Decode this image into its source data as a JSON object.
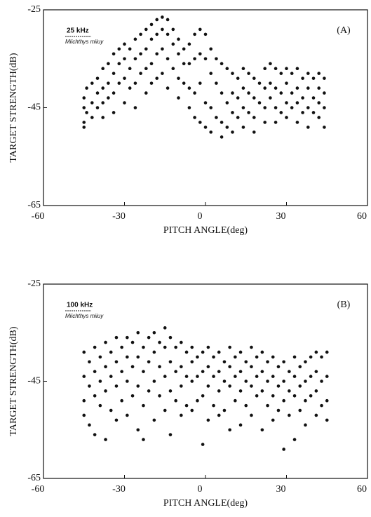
{
  "chart_data": [
    {
      "type": "scatter",
      "panel_label": "(A)",
      "frequency_label": "25 kHz",
      "species": "Miichthys miiuy",
      "xlabel": "PITCH ANGLE(deg)",
      "ylabel": "TARGET STRENGTH(dB)",
      "xlim": [
        -60,
        60
      ],
      "ylim": [
        -65,
        -25
      ],
      "xticks": [
        -60,
        -30,
        0,
        30,
        60
      ],
      "yticks": [
        -65,
        -45,
        -25
      ],
      "series": [
        {
          "color": "#111111",
          "x": [
            -45,
            -45,
            -45,
            -45,
            -44,
            -44,
            -42,
            -42,
            -42,
            -40,
            -40,
            -40,
            -38,
            -38,
            -38,
            -38,
            -36,
            -36,
            -36,
            -34,
            -34,
            -34,
            -34,
            -32,
            -32,
            -32,
            -30,
            -30,
            -30,
            -30,
            -28,
            -28,
            -28,
            -26,
            -26,
            -26,
            -26,
            -24,
            -24,
            -24,
            -22,
            -22,
            -22,
            -22,
            -20,
            -20,
            -20,
            -20,
            -18,
            -18,
            -18,
            -18,
            -16,
            -16,
            -16,
            -16,
            -14,
            -14,
            -14,
            -14,
            -12,
            -12,
            -12,
            -10,
            -10,
            -10,
            -10,
            -8,
            -8,
            -8,
            -6,
            -6,
            -6,
            -6,
            -4,
            -4,
            -4,
            -4,
            -2,
            -2,
            -2,
            -2,
            0,
            0,
            0,
            0,
            2,
            2,
            2,
            2,
            4,
            4,
            4,
            6,
            6,
            6,
            6,
            8,
            8,
            8,
            10,
            10,
            10,
            10,
            12,
            12,
            12,
            14,
            14,
            14,
            14,
            16,
            16,
            16,
            18,
            18,
            18,
            18,
            20,
            20,
            22,
            22,
            22,
            22,
            24,
            24,
            24,
            26,
            26,
            26,
            26,
            28,
            28,
            28,
            30,
            30,
            30,
            30,
            32,
            32,
            32,
            34,
            34,
            34,
            34,
            36,
            36,
            36,
            38,
            38,
            38,
            38,
            40,
            40,
            40,
            42,
            42,
            42,
            42,
            44,
            44,
            44,
            44
          ],
          "values": [
            -43,
            -45,
            -48,
            -49,
            -41,
            -46,
            -40,
            -44,
            -47,
            -39,
            -42,
            -45,
            -37,
            -41,
            -44,
            -47,
            -36,
            -40,
            -43,
            -34,
            -38,
            -42,
            -46,
            -33,
            -36,
            -40,
            -32,
            -35,
            -39,
            -44,
            -33,
            -37,
            -41,
            -31,
            -35,
            -40,
            -45,
            -30,
            -34,
            -38,
            -29,
            -33,
            -37,
            -42,
            -28,
            -31,
            -36,
            -40,
            -27,
            -30,
            -34,
            -39,
            -26.5,
            -29,
            -33,
            -38,
            -27,
            -30,
            -35,
            -41,
            -29,
            -32,
            -37,
            -31,
            -34,
            -39,
            -43,
            -33,
            -36,
            -40,
            -32,
            -36,
            -41,
            -45,
            -30,
            -35,
            -42,
            -47,
            -29,
            -34,
            -40,
            -48,
            -30,
            -35,
            -44,
            -49,
            -33,
            -38,
            -45,
            -50,
            -35,
            -40,
            -47,
            -36,
            -42,
            -48,
            -51,
            -37,
            -44,
            -49,
            -38,
            -42,
            -46,
            -50,
            -39,
            -43,
            -47,
            -37,
            -41,
            -45,
            -49,
            -38,
            -42,
            -46,
            -39,
            -43,
            -47,
            -50,
            -40,
            -44,
            -37,
            -41,
            -45,
            -48,
            -36,
            -40,
            -43,
            -37,
            -41,
            -45,
            -48,
            -38,
            -42,
            -46,
            -37,
            -40,
            -44,
            -47,
            -38,
            -42,
            -45,
            -37,
            -41,
            -44,
            -48,
            -39,
            -43,
            -46,
            -38,
            -41,
            -45,
            -49,
            -39,
            -43,
            -46,
            -38,
            -41,
            -44,
            -47,
            -39,
            -42,
            -45,
            -49
          ]
        }
      ]
    },
    {
      "type": "scatter",
      "panel_label": "(B)",
      "frequency_label": "100 kHz",
      "species": "Miichthys miiuy",
      "xlabel": "PITCH ANGLE(deg)",
      "ylabel": "TARGET STRENGTH(dB)",
      "xlim": [
        -60,
        60
      ],
      "ylim": [
        -65,
        -25
      ],
      "xticks": [
        -60,
        -30,
        0,
        30,
        60
      ],
      "yticks": [
        -65,
        -45,
        -25
      ],
      "series": [
        {
          "color": "#111111",
          "x": [
            -45,
            -45,
            -45,
            -45,
            -43,
            -43,
            -43,
            -41,
            -41,
            -41,
            -41,
            -39,
            -39,
            -39,
            -37,
            -37,
            -37,
            -37,
            -35,
            -35,
            -35,
            -33,
            -33,
            -33,
            -33,
            -31,
            -31,
            -31,
            -29,
            -29,
            -29,
            -29,
            -27,
            -27,
            -27,
            -25,
            -25,
            -25,
            -25,
            -23,
            -23,
            -23,
            -23,
            -21,
            -21,
            -21,
            -19,
            -19,
            -19,
            -19,
            -17,
            -17,
            -17,
            -15,
            -15,
            -15,
            -15,
            -13,
            -13,
            -13,
            -13,
            -11,
            -11,
            -11,
            -9,
            -9,
            -9,
            -9,
            -7,
            -7,
            -7,
            -5,
            -5,
            -5,
            -5,
            -3,
            -3,
            -3,
            -1,
            -1,
            -1,
            -1,
            1,
            1,
            1,
            1,
            3,
            3,
            3,
            5,
            5,
            5,
            5,
            7,
            7,
            7,
            9,
            9,
            9,
            9,
            11,
            11,
            11,
            13,
            13,
            13,
            13,
            15,
            15,
            15,
            17,
            17,
            17,
            17,
            19,
            19,
            19,
            21,
            21,
            21,
            21,
            23,
            23,
            23,
            25,
            25,
            25,
            25,
            27,
            27,
            27,
            29,
            29,
            29,
            29,
            31,
            31,
            31,
            33,
            33,
            33,
            33,
            35,
            35,
            35,
            37,
            37,
            37,
            37,
            39,
            39,
            39,
            41,
            41,
            41,
            41,
            43,
            43,
            43,
            45,
            45,
            45,
            45
          ],
          "values": [
            -39,
            -44,
            -49,
            -52,
            -41,
            -46,
            -54,
            -38,
            -43,
            -48,
            -56,
            -40,
            -45,
            -50,
            -37,
            -42,
            -47,
            -57,
            -39,
            -44,
            -51,
            -36,
            -41,
            -46,
            -53,
            -38,
            -43,
            -49,
            -36,
            -40,
            -45,
            -52,
            -37,
            -42,
            -48,
            -35,
            -40,
            -46,
            -55,
            -38,
            -43,
            -50,
            -57,
            -36,
            -41,
            -47,
            -35,
            -39,
            -45,
            -53,
            -37,
            -42,
            -48,
            -34,
            -38,
            -44,
            -51,
            -36,
            -41,
            -47,
            -56,
            -38,
            -43,
            -49,
            -37,
            -42,
            -46,
            -52,
            -39,
            -44,
            -50,
            -38,
            -41,
            -45,
            -51,
            -40,
            -44,
            -49,
            -39,
            -43,
            -48,
            -58,
            -38,
            -42,
            -46,
            -53,
            -40,
            -44,
            -50,
            -39,
            -43,
            -47,
            -52,
            -41,
            -45,
            -51,
            -38,
            -42,
            -46,
            -55,
            -40,
            -44,
            -49,
            -39,
            -43,
            -47,
            -54,
            -41,
            -45,
            -50,
            -38,
            -42,
            -46,
            -52,
            -40,
            -44,
            -48,
            -39,
            -43,
            -47,
            -55,
            -41,
            -45,
            -50,
            -40,
            -44,
            -48,
            -53,
            -42,
            -46,
            -51,
            -41,
            -45,
            -49,
            -59,
            -43,
            -47,
            -52,
            -40,
            -44,
            -48,
            -57,
            -42,
            -46,
            -51,
            -41,
            -45,
            -49,
            -54,
            -40,
            -44,
            -48,
            -39,
            -43,
            -47,
            -52,
            -40,
            -45,
            -50,
            -39,
            -44,
            -49,
            -53
          ]
        }
      ]
    }
  ]
}
